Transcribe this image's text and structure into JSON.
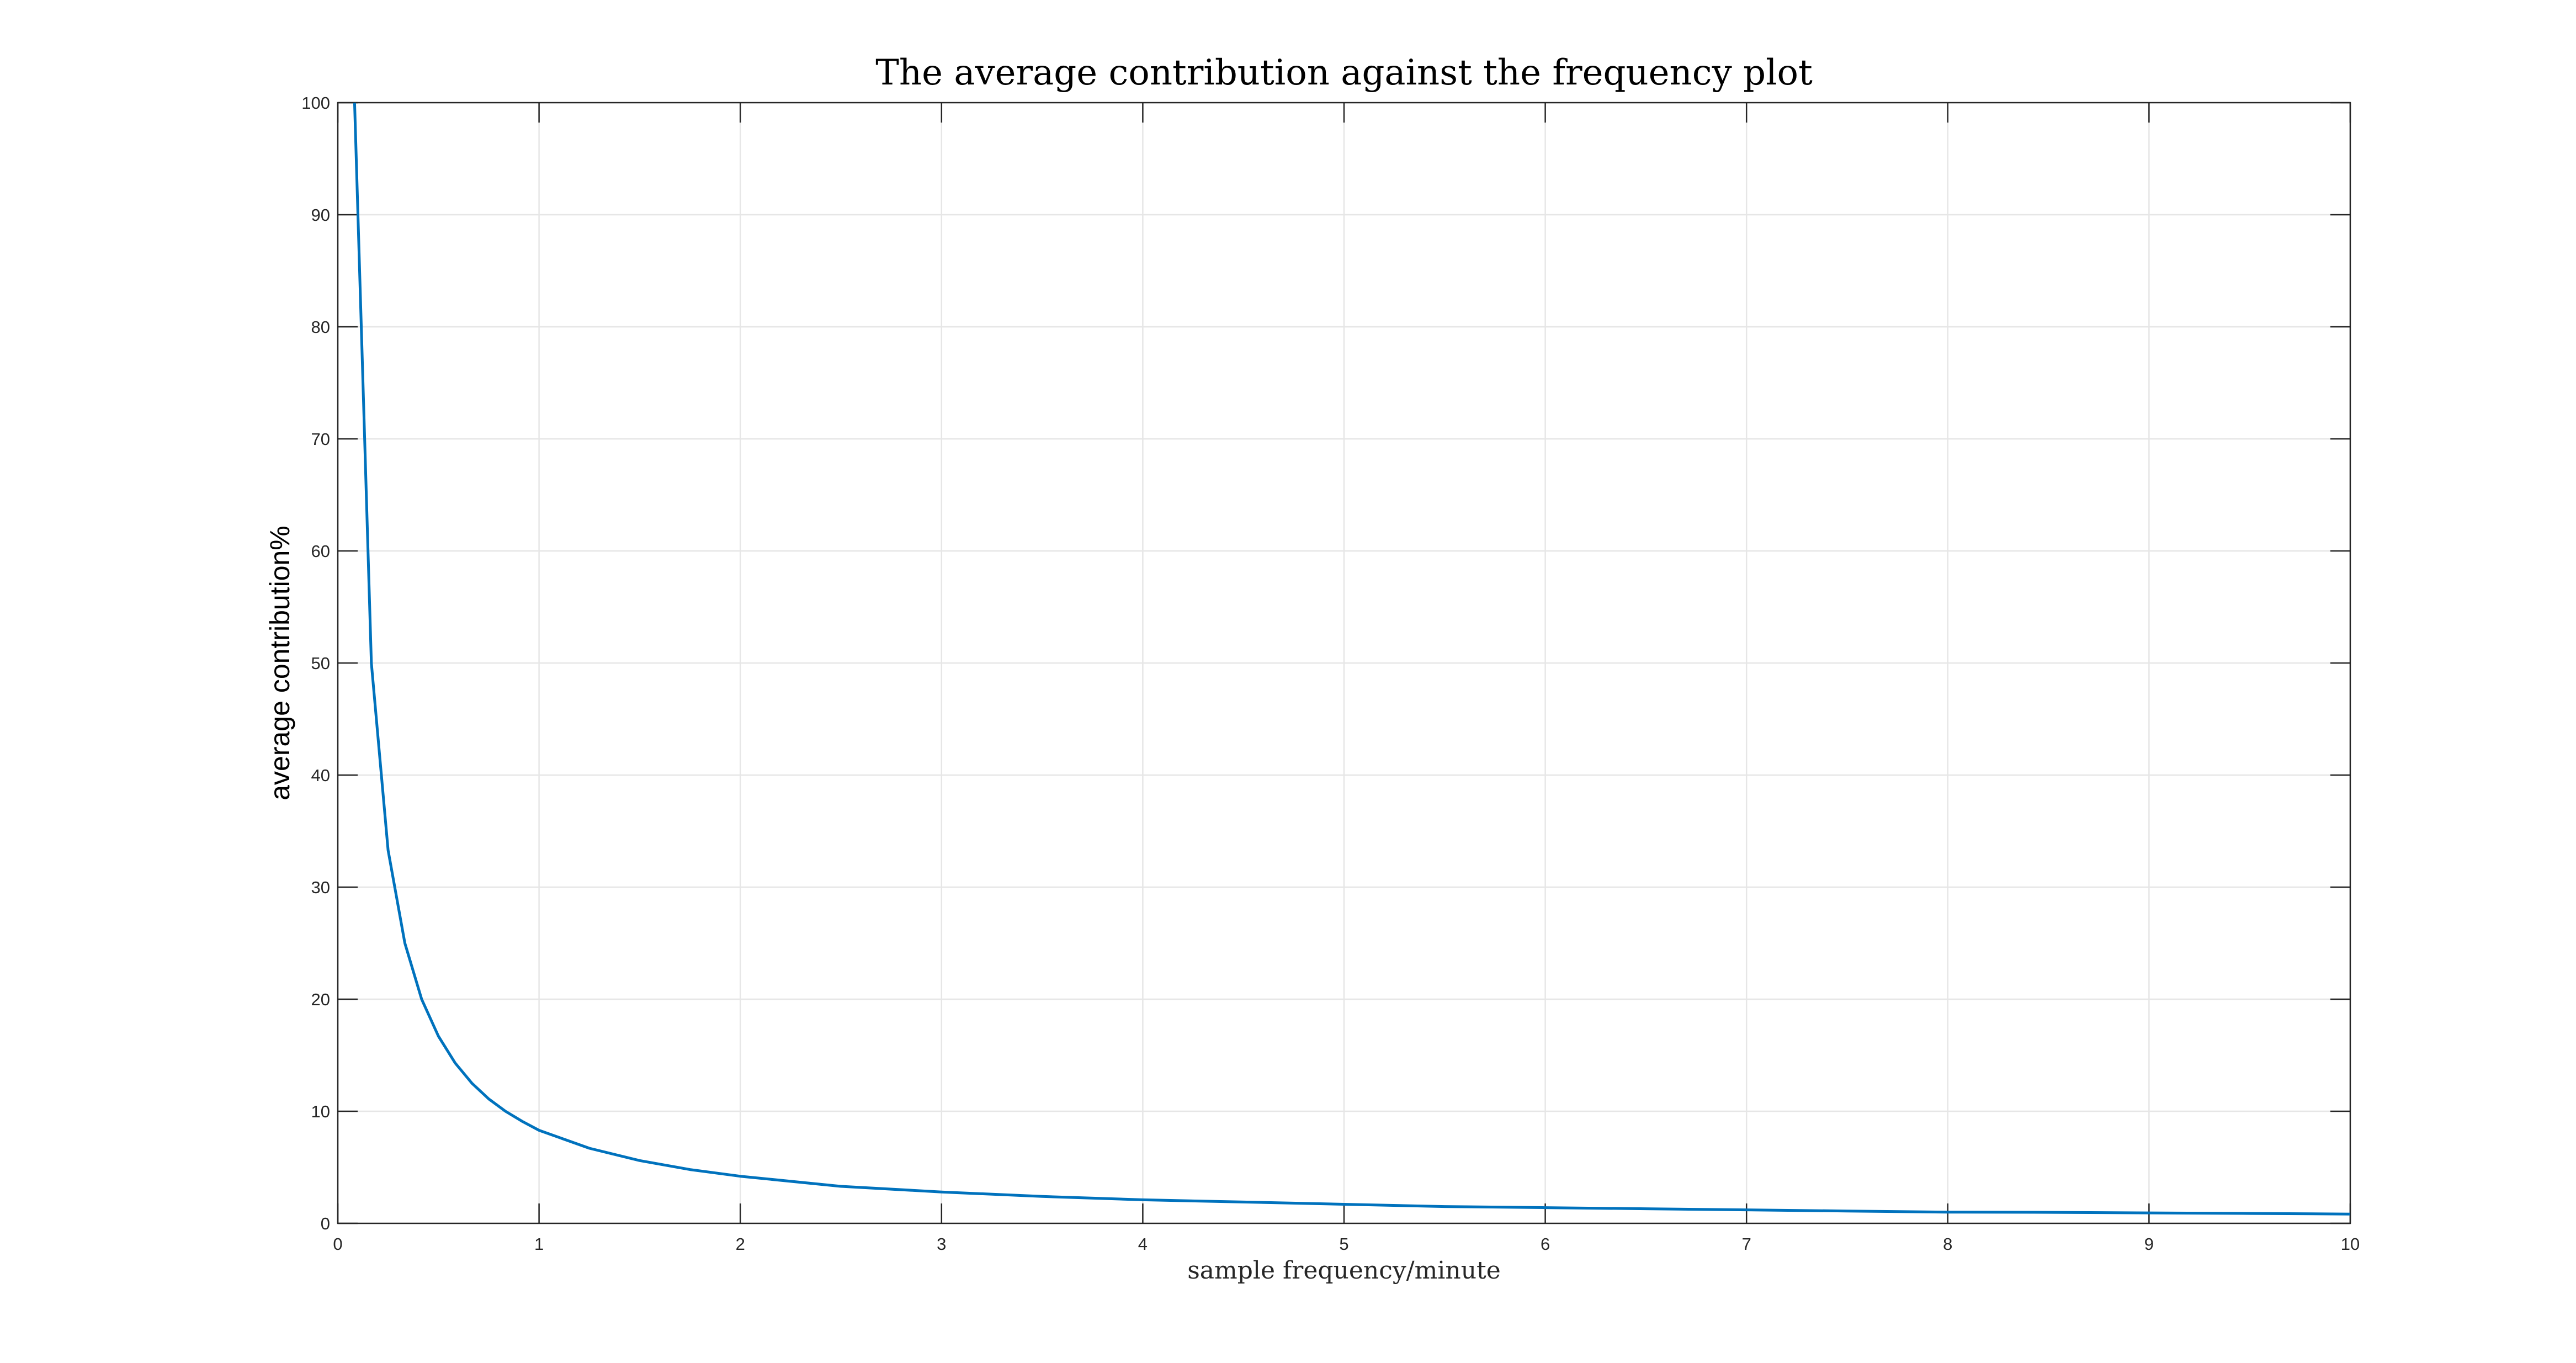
{
  "chart_data": {
    "type": "line",
    "title": "The average contribution against the frequency plot",
    "xlabel": "sample frequency/minute",
    "ylabel": "average contribution%",
    "xlim": [
      0,
      10
    ],
    "ylim": [
      0,
      100
    ],
    "x_ticks": [
      "0",
      "1",
      "2",
      "3",
      "4",
      "5",
      "6",
      "7",
      "8",
      "9",
      "10"
    ],
    "y_ticks": [
      "0",
      "10",
      "20",
      "30",
      "40",
      "50",
      "60",
      "70",
      "80",
      "90",
      "100"
    ],
    "grid": true,
    "series": [
      {
        "color": "#0072bd",
        "x": [
          0.0833,
          0.1667,
          0.25,
          0.3333,
          0.4167,
          0.5,
          0.5833,
          0.6667,
          0.75,
          0.8333,
          0.9167,
          1.0,
          1.25,
          1.5,
          1.75,
          2.0,
          2.5,
          3.0,
          3.5,
          4.0,
          4.5,
          5.0,
          5.5,
          6.0,
          6.5,
          7.0,
          7.5,
          8.0,
          8.5,
          9.0,
          9.5,
          10.0
        ],
        "y": [
          100,
          50,
          33.3,
          25,
          20,
          16.7,
          14.3,
          12.5,
          11.1,
          10,
          9.1,
          8.3,
          6.7,
          5.6,
          4.8,
          4.2,
          3.3,
          2.8,
          2.4,
          2.1,
          1.9,
          1.7,
          1.5,
          1.4,
          1.3,
          1.2,
          1.1,
          1.0,
          0.98,
          0.93,
          0.88,
          0.83
        ]
      }
    ]
  }
}
